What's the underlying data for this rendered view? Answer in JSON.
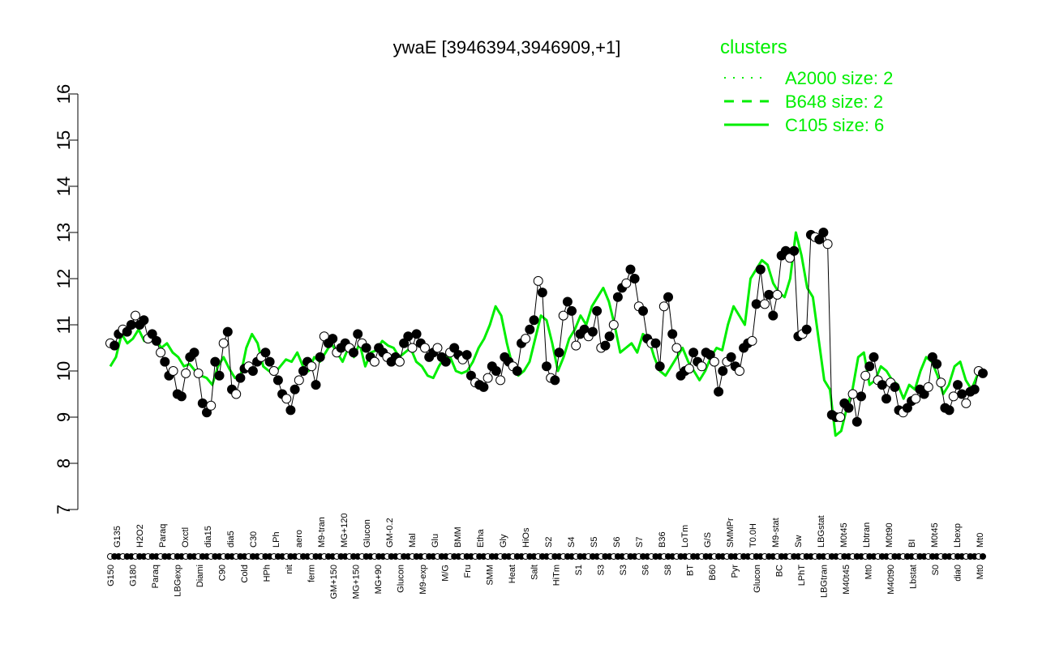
{
  "chart_data": {
    "type": "line",
    "title": "ywaE [3946394,3946909,+1]",
    "xlabel": "",
    "ylabel": "",
    "ylim": [
      7,
      16
    ],
    "yticks": [
      7,
      8,
      9,
      10,
      11,
      12,
      13,
      14,
      15,
      16
    ],
    "legend": {
      "title": "clusters",
      "placement": "top-right",
      "color": "#00ee00",
      "entries": [
        {
          "label": "A2000 size: 2",
          "style": "dotted"
        },
        {
          "label": "B648 size: 2",
          "style": "dashed"
        },
        {
          "label": "C105 size: 6",
          "style": "solid"
        }
      ]
    },
    "colors": {
      "line": "#00ee00",
      "points": "#000000",
      "axis": "#000000"
    },
    "tick_labels_top": [
      "G135",
      "H2O2",
      "Paraq",
      "Oxctl",
      "dia15",
      "dia5",
      "C30",
      "LPh",
      "aero",
      "M9-tran",
      "MG+120",
      "Glucon",
      "GM-0.2",
      "Mal",
      "Glu",
      "BMM",
      "Etha",
      "Gly",
      "HiOs",
      "S2",
      "S4",
      "S5",
      "S6",
      "S7",
      "B36",
      "LoTm",
      "G/S",
      "SMMPr",
      "T0.0H",
      "M9-stat",
      "Sw",
      "LBGstat",
      "M0t45",
      "Lbtran",
      "M0t90",
      "BI",
      "M0t45",
      "Lbexp",
      "Mt0"
    ],
    "tick_labels_bottom": [
      "G150",
      "G180",
      "Paraq",
      "LBGexp",
      "Diami",
      "C90",
      "Cold",
      "HPh",
      "nit",
      "ferm",
      "GM+150",
      "MG+150",
      "MG+90",
      "Glucon",
      "M9-exp",
      "M/G",
      "Fru",
      "SMM",
      "Heat",
      "Salt",
      "HiTm",
      "S1",
      "S3",
      "S3",
      "S6",
      "S8",
      "BT",
      "B60",
      "Pyr",
      "Glucon",
      "BC",
      "LPhT",
      "LBGtran",
      "M40t45",
      "Mt0",
      "M40t90",
      "Lbstat",
      "S0",
      "dia0",
      "Mt0"
    ],
    "series": [
      {
        "style": "points",
        "values": [
          10.6,
          10.55,
          10.8,
          10.9,
          10.85,
          11.0,
          11.2,
          11.0,
          11.1,
          10.7,
          10.8,
          10.65,
          10.4,
          10.2,
          9.9,
          10.0,
          9.5,
          9.45,
          9.95,
          10.3,
          10.4,
          9.95,
          9.3,
          9.1,
          9.25,
          10.2,
          9.9,
          10.6,
          10.85,
          9.6,
          9.5,
          9.85,
          10.05,
          10.1,
          10.0,
          10.2,
          10.3,
          10.4,
          10.2,
          10.0,
          9.8,
          9.5,
          9.4,
          9.15,
          9.6,
          9.8,
          10.0,
          10.2,
          10.1,
          9.7,
          10.3,
          10.75,
          10.6,
          10.7,
          10.4,
          10.5,
          10.6,
          10.5,
          10.4,
          10.8,
          10.6,
          10.5,
          10.3,
          10.2,
          10.5,
          10.4,
          10.3,
          10.2,
          10.3,
          10.2,
          10.6,
          10.75,
          10.5,
          10.8,
          10.6,
          10.5,
          10.3,
          10.4,
          10.5,
          10.3,
          10.2,
          10.4,
          10.5,
          10.35,
          10.25,
          10.35,
          9.9,
          9.75,
          9.7,
          9.65,
          9.85,
          10.1,
          10.0,
          9.8,
          10.3,
          10.2,
          10.1,
          10.0,
          10.6,
          10.7,
          10.9,
          11.1,
          11.95,
          11.7,
          10.1,
          9.85,
          9.8,
          10.4,
          11.2,
          11.5,
          11.3,
          10.55,
          10.8,
          10.9,
          10.75,
          10.85,
          11.3,
          10.5,
          10.55,
          10.75,
          11.0,
          11.6,
          11.8,
          11.9,
          12.2,
          12.0,
          11.4,
          11.3,
          10.7,
          10.6,
          10.6,
          10.1,
          11.4,
          11.6,
          10.8,
          10.5,
          9.9,
          10.0,
          10.05,
          10.4,
          10.2,
          10.1,
          10.4,
          10.35,
          10.2,
          9.55,
          10.0,
          10.2,
          10.3,
          10.1,
          10.0,
          10.5,
          10.6,
          10.65,
          11.45,
          12.2,
          11.45,
          11.65,
          11.2,
          11.65,
          12.5,
          12.6,
          12.45,
          12.6,
          10.75,
          10.8,
          10.9,
          12.95,
          12.9,
          12.85,
          13.0,
          12.75,
          9.05,
          9.0,
          9.0,
          9.3,
          9.2,
          9.5,
          8.9,
          9.45,
          9.9,
          10.1,
          10.3,
          9.8,
          9.7,
          9.4,
          9.75,
          9.65,
          9.15,
          9.1,
          9.2,
          9.35,
          9.4,
          9.6,
          9.5,
          9.65,
          10.3,
          10.15,
          9.75,
          9.2,
          9.15,
          9.45,
          9.7,
          9.5,
          9.3,
          9.55,
          9.6,
          10.0,
          9.95
        ]
      },
      {
        "style": "line",
        "values": [
          10.1,
          10.3,
          10.8,
          10.6,
          10.7,
          10.9,
          10.65,
          10.8,
          10.7,
          10.5,
          10.6,
          10.4,
          10.3,
          10.1,
          10.15,
          10.0,
          9.9,
          9.85,
          9.7,
          10.1,
          10.3,
          10.05,
          9.85,
          9.9,
          10.5,
          10.8,
          10.6,
          10.1,
          10.0,
          9.95,
          10.1,
          10.25,
          10.2,
          10.4,
          10.1,
          10.0,
          10.3,
          10.2,
          10.4,
          10.6,
          10.4,
          10.2,
          10.5,
          10.3,
          10.6,
          10.1,
          10.4,
          10.45,
          10.65,
          10.55,
          10.5,
          10.3,
          10.4,
          10.5,
          10.2,
          10.1,
          9.9,
          9.85,
          10.1,
          10.3,
          10.3,
          10.0,
          9.95,
          10.0,
          10.2,
          10.5,
          10.7,
          11.0,
          11.4,
          11.2,
          10.6,
          10.1,
          9.9,
          10.0,
          10.2,
          10.7,
          11.2,
          11.1,
          10.6,
          10.0,
          10.3,
          10.7,
          10.9,
          11.2,
          11.0,
          11.4,
          11.6,
          11.8,
          11.5,
          11.0,
          10.4,
          10.5,
          10.6,
          10.4,
          10.8,
          10.7,
          10.3,
          10.0,
          9.9,
          10.1,
          10.3,
          10.5,
          10.2,
          10.0,
          9.8,
          10.0,
          10.3,
          10.5,
          10.45,
          11.0,
          11.4,
          11.2,
          11.0,
          12.0,
          12.2,
          12.4,
          12.3,
          11.9,
          11.7,
          11.6,
          12.0,
          13.0,
          12.5,
          11.8,
          11.6,
          10.7,
          9.8,
          9.6,
          8.6,
          8.7,
          9.2,
          9.6,
          10.3,
          10.4,
          9.7,
          9.8,
          10.1,
          10.0,
          9.8,
          9.7,
          9.4,
          9.7,
          9.6,
          10.0,
          10.3,
          10.2,
          9.9,
          9.5,
          9.7,
          10.1,
          10.2,
          9.8,
          9.6,
          9.9,
          10.0
        ]
      }
    ]
  }
}
